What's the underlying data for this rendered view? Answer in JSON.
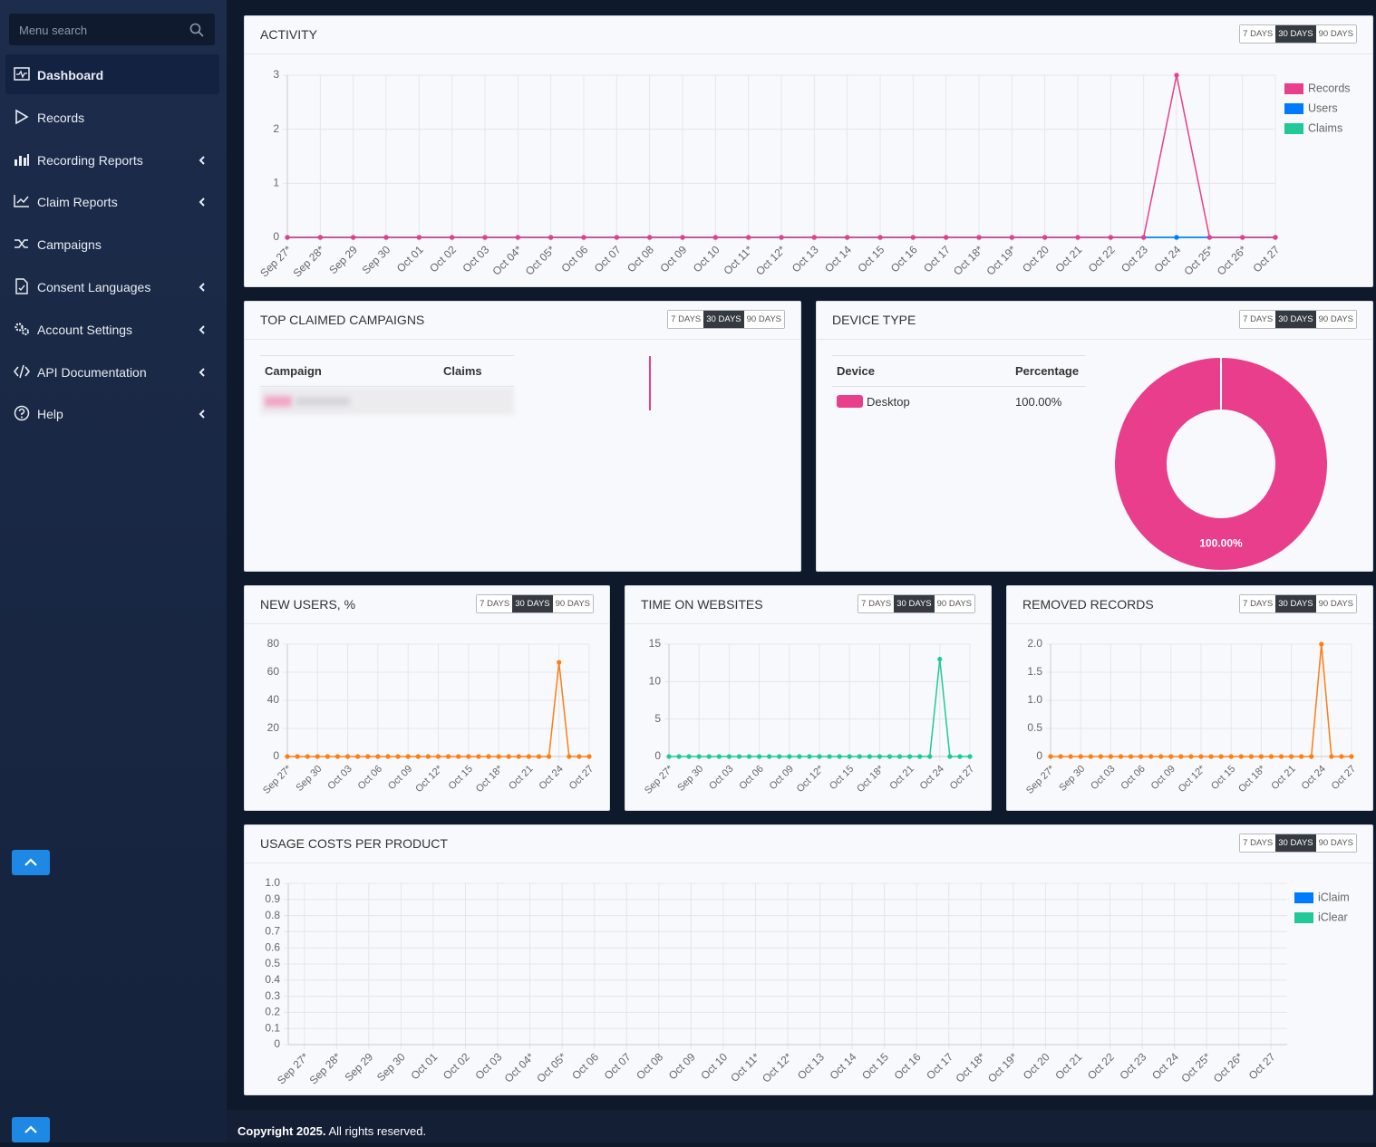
{
  "sidebar": {
    "search_placeholder": "Menu search",
    "items": [
      {
        "label": "Dashboard",
        "active": true,
        "submenu": false
      },
      {
        "label": "Records",
        "active": false,
        "submenu": false
      },
      {
        "label": "Recording Reports",
        "active": false,
        "submenu": true
      },
      {
        "label": "Claim Reports",
        "active": false,
        "submenu": true
      },
      {
        "label": "Campaigns",
        "active": false,
        "submenu": false
      },
      {
        "label": "Consent Languages",
        "active": false,
        "submenu": true
      },
      {
        "label": "Account Settings",
        "active": false,
        "submenu": true
      },
      {
        "label": "API Documentation",
        "active": false,
        "submenu": true
      },
      {
        "label": "Help",
        "active": false,
        "submenu": true
      }
    ]
  },
  "period_options": [
    "7 DAYS",
    "30 DAYS",
    "90 DAYS"
  ],
  "selected_period": 1,
  "top_claimed_campaigns": {
    "title": "TOP CLAIMED CAMPAIGNS",
    "columns": [
      "Campaign",
      "Claims"
    ]
  },
  "device_table": {
    "columns": [
      "Device",
      "Percentage"
    ]
  },
  "chart_data": [
    {
      "type": "line",
      "title": "ACTIVITY",
      "categories": [
        "Sep 27*",
        "Sep 28*",
        "Sep 29",
        "Sep 30",
        "Oct 01",
        "Oct 02",
        "Oct 03",
        "Oct 04*",
        "Oct 05*",
        "Oct 06",
        "Oct 07",
        "Oct 08",
        "Oct 09",
        "Oct 10",
        "Oct 11*",
        "Oct 12*",
        "Oct 13",
        "Oct 14",
        "Oct 15",
        "Oct 16",
        "Oct 17",
        "Oct 18*",
        "Oct 19*",
        "Oct 20",
        "Oct 21",
        "Oct 22",
        "Oct 23",
        "Oct 24",
        "Oct 25*",
        "Oct 26*",
        "Oct 27"
      ],
      "series": [
        {
          "name": "Records",
          "color": "#e83e8c",
          "values": [
            0,
            0,
            0,
            0,
            0,
            0,
            0,
            0,
            0,
            0,
            0,
            0,
            0,
            0,
            0,
            0,
            0,
            0,
            0,
            0,
            0,
            0,
            0,
            0,
            0,
            0,
            0,
            3,
            0,
            0,
            0
          ]
        },
        {
          "name": "Users",
          "color": "#007bff",
          "values": [
            0,
            0,
            0,
            0,
            0,
            0,
            0,
            0,
            0,
            0,
            0,
            0,
            0,
            0,
            0,
            0,
            0,
            0,
            0,
            0,
            0,
            0,
            0,
            0,
            0,
            0,
            0,
            0,
            0,
            0,
            0
          ]
        },
        {
          "name": "Claims",
          "color": "#20c997",
          "values": [
            0,
            0,
            0,
            0,
            0,
            0,
            0,
            0,
            0,
            0,
            0,
            0,
            0,
            0,
            0,
            0,
            0,
            0,
            0,
            0,
            0,
            0,
            0,
            0,
            0,
            0,
            0,
            0,
            0,
            0,
            0
          ]
        }
      ],
      "ylim": [
        0,
        3
      ],
      "yticks": [
        0,
        1,
        2,
        3
      ],
      "grid": true,
      "legend": "right"
    },
    {
      "type": "pie",
      "title": "DEVICE TYPE",
      "categories": [
        "Desktop"
      ],
      "values": [
        100
      ],
      "value_labels": [
        "100.00%"
      ],
      "colors": [
        "#e83e8c"
      ]
    },
    {
      "type": "line",
      "title": "NEW USERS, %",
      "categories": [
        "Sep 27*",
        null,
        null,
        "Sep 30",
        null,
        null,
        "Oct 03",
        null,
        null,
        "Oct 06",
        null,
        null,
        "Oct 09",
        null,
        null,
        "Oct 12*",
        null,
        null,
        "Oct 15",
        null,
        null,
        "Oct 18*",
        null,
        null,
        "Oct 21",
        null,
        null,
        "Oct 24",
        null,
        null,
        "Oct 27"
      ],
      "values": [
        0,
        0,
        0,
        0,
        0,
        0,
        0,
        0,
        0,
        0,
        0,
        0,
        0,
        0,
        0,
        0,
        0,
        0,
        0,
        0,
        0,
        0,
        0,
        0,
        0,
        0,
        0,
        67,
        0,
        0,
        0
      ],
      "color": "#fd7e14",
      "ylim": [
        0,
        80
      ],
      "yticks": [
        0,
        20,
        40,
        60,
        80
      ],
      "grid": true
    },
    {
      "type": "line",
      "title": "TIME ON WEBSITES",
      "categories": [
        "Sep 27*",
        null,
        null,
        "Sep 30",
        null,
        null,
        "Oct 03",
        null,
        null,
        "Oct 06",
        null,
        null,
        "Oct 09",
        null,
        null,
        "Oct 12*",
        null,
        null,
        "Oct 15",
        null,
        null,
        "Oct 18*",
        null,
        null,
        "Oct 21",
        null,
        null,
        "Oct 24",
        null,
        null,
        "Oct 27"
      ],
      "values": [
        0,
        0,
        0,
        0,
        0,
        0,
        0,
        0,
        0,
        0,
        0,
        0,
        0,
        0,
        0,
        0,
        0,
        0,
        0,
        0,
        0,
        0,
        0,
        0,
        0,
        0,
        0,
        13,
        0,
        0,
        0
      ],
      "color": "#20c997",
      "ylim": [
        0,
        15
      ],
      "yticks": [
        0,
        5,
        10,
        15
      ],
      "grid": true
    },
    {
      "type": "line",
      "title": "REMOVED RECORDS",
      "categories": [
        "Sep 27*",
        null,
        null,
        "Sep 30",
        null,
        null,
        "Oct 03",
        null,
        null,
        "Oct 06",
        null,
        null,
        "Oct 09",
        null,
        null,
        "Oct 12*",
        null,
        null,
        "Oct 15",
        null,
        null,
        "Oct 18*",
        null,
        null,
        "Oct 21",
        null,
        null,
        "Oct 24",
        null,
        null,
        "Oct 27"
      ],
      "values": [
        0,
        0,
        0,
        0,
        0,
        0,
        0,
        0,
        0,
        0,
        0,
        0,
        0,
        0,
        0,
        0,
        0,
        0,
        0,
        0,
        0,
        0,
        0,
        0,
        0,
        0,
        0,
        2,
        0,
        0,
        0
      ],
      "color": "#fd7e14",
      "ylim": [
        0,
        2
      ],
      "yticks": [
        0,
        0.5,
        {
          "value": 1,
          "label": "1.0"
        },
        1.5,
        {
          "value": 2,
          "label": "2.0"
        }
      ],
      "grid": true
    },
    {
      "type": "line",
      "title": "USAGE COSTS PER PRODUCT",
      "categories": [
        "Sep 27*",
        "Sep 28*",
        "Sep 29",
        "Sep 30",
        "Oct 01",
        "Oct 02",
        "Oct 03",
        "Oct 04*",
        "Oct 05*",
        "Oct 06",
        "Oct 07",
        "Oct 08",
        "Oct 09",
        "Oct 10",
        "Oct 11*",
        "Oct 12*",
        "Oct 13",
        "Oct 14",
        "Oct 15",
        "Oct 16",
        "Oct 17",
        "Oct 18*",
        "Oct 19*",
        "Oct 20",
        "Oct 21",
        "Oct 22",
        "Oct 23",
        "Oct 24",
        "Oct 25*",
        "Oct 26*",
        "Oct 27"
      ],
      "series": [
        {
          "name": "iClaim",
          "color": "#007bff",
          "values": [
            null,
            null,
            null,
            null,
            null,
            null,
            null,
            null,
            null,
            null,
            null,
            null,
            null,
            null,
            null,
            null,
            null,
            null,
            null,
            null,
            null,
            null,
            null,
            null,
            null,
            null,
            null,
            null,
            null,
            null,
            null
          ]
        },
        {
          "name": "iClear",
          "color": "#20c997",
          "values": [
            null,
            null,
            null,
            null,
            null,
            null,
            null,
            null,
            null,
            null,
            null,
            null,
            null,
            null,
            null,
            null,
            null,
            null,
            null,
            null,
            null,
            null,
            null,
            null,
            null,
            null,
            null,
            null,
            null,
            null,
            null
          ]
        }
      ],
      "ylim": [
        0,
        1
      ],
      "yticks": [
        0,
        0.1,
        0.2,
        0.3,
        0.4,
        0.5,
        0.6,
        0.7,
        0.8,
        0.9,
        {
          "value": 1,
          "label": "1.0"
        }
      ],
      "grid": true,
      "legend": "right"
    }
  ],
  "footer": {
    "copyright": "Copyright 2025.",
    "rights": "All rights reserved."
  }
}
